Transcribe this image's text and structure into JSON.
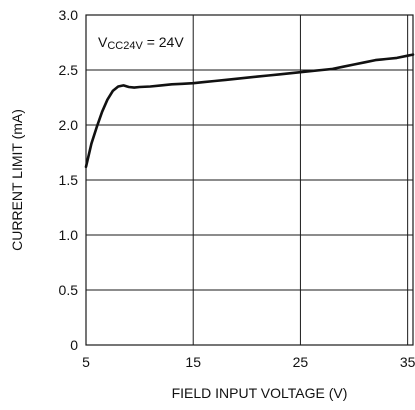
{
  "chart_data": {
    "type": "line",
    "title": "",
    "xlabel": "FIELD INPUT VOLTAGE (V)",
    "ylabel": "CURRENT LIMIT (mA)",
    "xlim": [
      5,
      35.5
    ],
    "ylim": [
      0,
      3.0
    ],
    "xticks": [
      "5",
      "15",
      "25",
      "35"
    ],
    "yticks": [
      "0",
      "0.5",
      "1.0",
      "1.5",
      "2.0",
      "2.5",
      "3.0"
    ],
    "grid": true,
    "annotation": {
      "main": "V",
      "sub": "CC24V",
      "suffix": " = 24V"
    },
    "series": [
      {
        "name": "",
        "x": [
          5,
          5.5,
          6,
          6.5,
          7,
          7.5,
          8,
          8.5,
          9,
          9.5,
          10,
          11,
          12,
          13,
          14,
          15,
          16,
          17,
          18,
          19,
          20,
          21,
          22,
          23,
          24,
          25,
          26,
          27,
          28,
          29,
          30,
          31,
          32,
          33,
          34,
          35,
          35.5
        ],
        "y": [
          1.62,
          1.83,
          1.98,
          2.12,
          2.23,
          2.31,
          2.35,
          2.36,
          2.345,
          2.34,
          2.345,
          2.35,
          2.36,
          2.37,
          2.375,
          2.38,
          2.39,
          2.4,
          2.41,
          2.42,
          2.43,
          2.44,
          2.45,
          2.46,
          2.47,
          2.48,
          2.49,
          2.5,
          2.51,
          2.53,
          2.55,
          2.57,
          2.59,
          2.6,
          2.61,
          2.63,
          2.64
        ]
      }
    ]
  }
}
